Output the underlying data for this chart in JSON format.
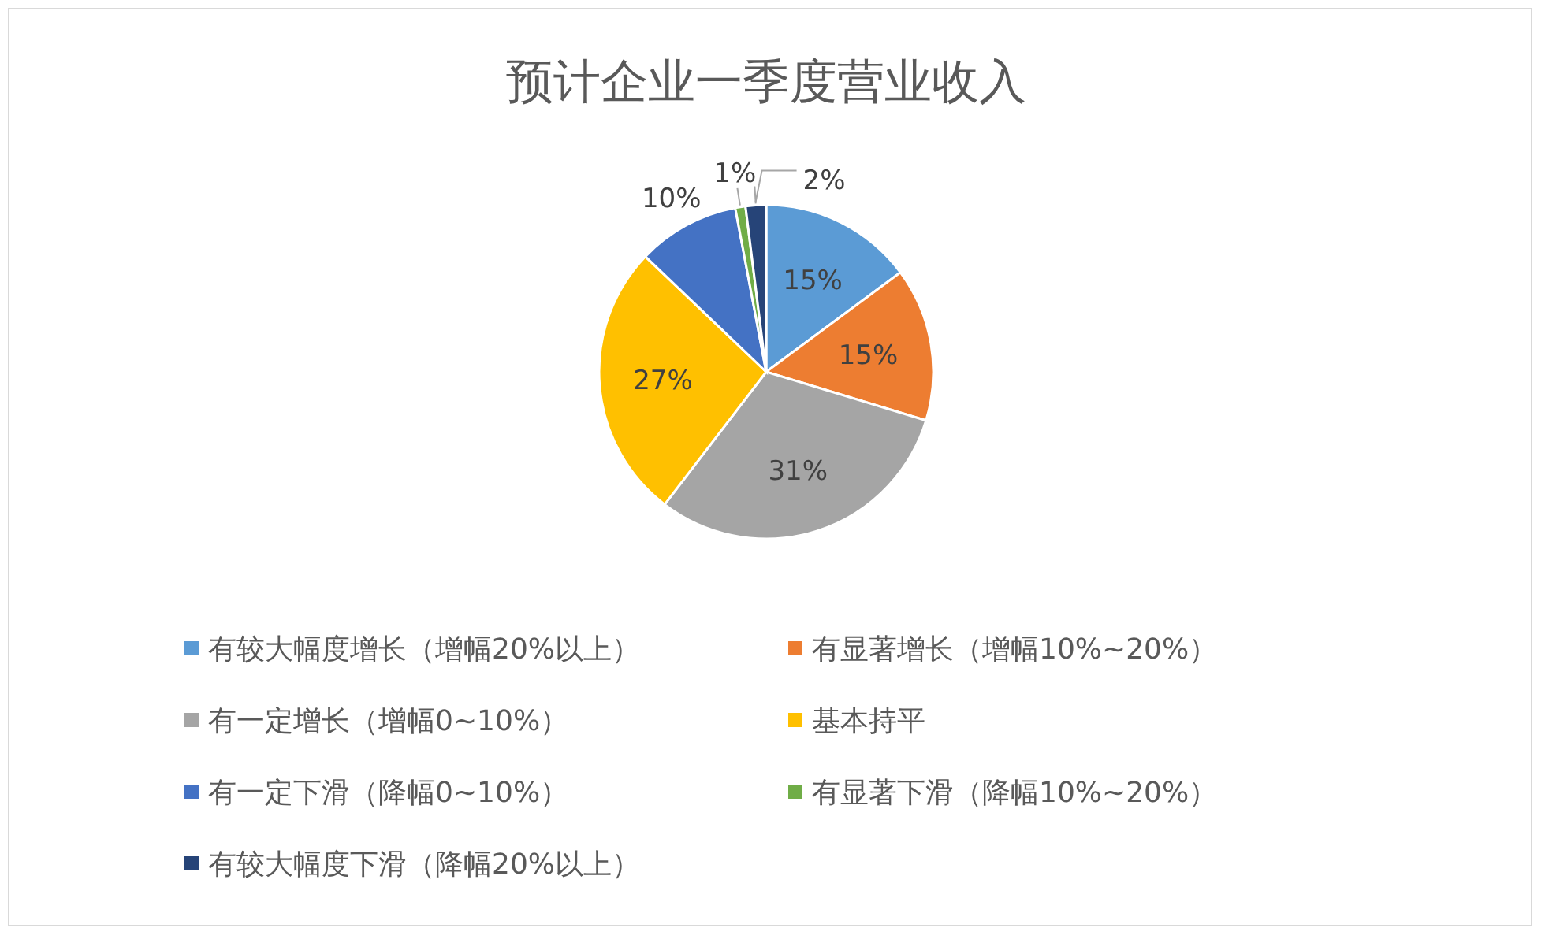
{
  "chart_data": {
    "type": "pie",
    "title": "预计企业一季度营业收入",
    "categories": [
      "有较大幅度增长（增幅20%以上）",
      "有显著增长（增幅10%~20%）",
      "有一定增长（增幅0~10%）",
      "基本持平",
      "有一定下滑（降幅0~10%）",
      "有显著下滑（降幅10%~20%）",
      "有较大幅度下滑（降幅20%以上）"
    ],
    "values": [
      15,
      15,
      31,
      27,
      10,
      1,
      2
    ],
    "value_labels": [
      "15%",
      "15%",
      "31%",
      "27%",
      "10%",
      "1%",
      "2%"
    ],
    "colors": [
      "#5b9bd5",
      "#ed7d31",
      "#a5a5a5",
      "#ffc000",
      "#4472c4",
      "#70ad47",
      "#264478"
    ],
    "legend": "bottom"
  }
}
